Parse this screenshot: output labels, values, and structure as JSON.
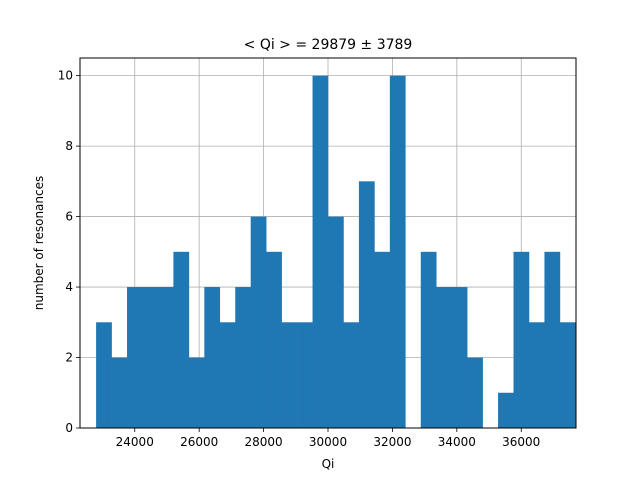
{
  "chart_data": {
    "type": "bar",
    "title": "< Qi > = 29879 ± 3789",
    "xlabel": "Qi",
    "ylabel": "number of resonances",
    "xlim": [
      22300,
      37700
    ],
    "ylim": [
      0,
      10.5
    ],
    "grid": true,
    "bar_color": "#1f77b4",
    "x_ticks": [
      24000,
      26000,
      28000,
      30000,
      32000,
      34000,
      36000
    ],
    "x_tick_labels": [
      "24000",
      "26000",
      "28000",
      "30000",
      "32000",
      "34000",
      "36000"
    ],
    "y_ticks": [
      0,
      2,
      4,
      6,
      8,
      10
    ],
    "y_tick_labels": [
      "0",
      "2",
      "4",
      "6",
      "8",
      "10"
    ],
    "bin_start": 22800,
    "bin_width": 480,
    "values": [
      3,
      2,
      4,
      4,
      4,
      5,
      2,
      4,
      3,
      4,
      6,
      5,
      3,
      3,
      10,
      6,
      3,
      7,
      5,
      10,
      0,
      5,
      4,
      4,
      2,
      0,
      1,
      5,
      3,
      5,
      3
    ]
  }
}
